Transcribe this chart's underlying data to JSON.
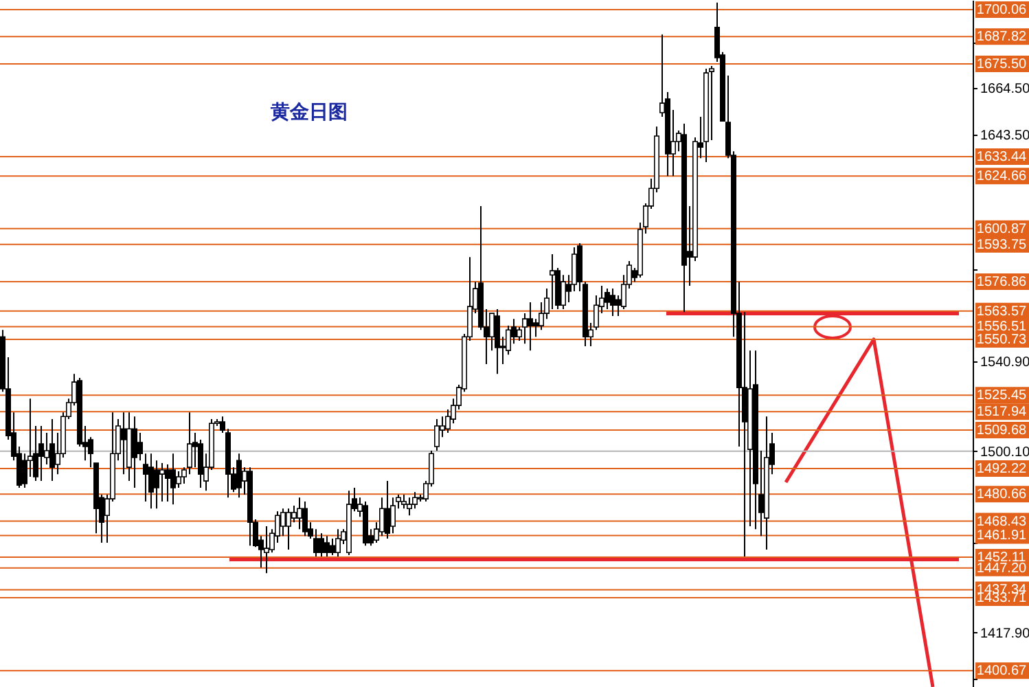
{
  "chart_data": {
    "type": "candlestick",
    "title": "黄金日图",
    "color": "#000000",
    "tick_labels": "y",
    "grid": false,
    "ylim": [
      1393.3,
      1704.4
    ],
    "yticks": [
      {
        "value": 1684.9,
        "label": null
      },
      {
        "value": 1664.5,
        "label": "1664.50"
      },
      {
        "value": 1643.5,
        "label": "1643.50"
      },
      {
        "value": 1582.3,
        "label": null
      },
      {
        "value": 1540.9,
        "label": "1540.90"
      },
      {
        "value": 1500.1,
        "label": "1500.10"
      },
      {
        "value": 1458.7,
        "label": null
      },
      {
        "value": 1417.9,
        "label": "1417.90"
      },
      {
        "value": 1396.9,
        "label": null
      }
    ],
    "ref_lines": [
      {
        "axis": "y",
        "value": 1700.06,
        "label": "1700.06",
        "color": "#e2621b"
      },
      {
        "axis": "y",
        "value": 1687.82,
        "label": "1687.82",
        "color": "#e2621b"
      },
      {
        "axis": "y",
        "value": 1675.5,
        "label": "1675.50",
        "color": "#e2621b"
      },
      {
        "axis": "y",
        "value": 1633.44,
        "label": "1633.44",
        "color": "#e2621b"
      },
      {
        "axis": "y",
        "value": 1624.66,
        "label": "1624.66",
        "color": "#e2621b"
      },
      {
        "axis": "y",
        "value": 1600.87,
        "label": "1600.87",
        "color": "#e2621b"
      },
      {
        "axis": "y",
        "value": 1593.75,
        "label": "1593.75",
        "color": "#e2621b"
      },
      {
        "axis": "y",
        "value": 1576.86,
        "label": "1576.86",
        "color": "#e2621b"
      },
      {
        "axis": "y",
        "value": 1563.57,
        "label": "1563.57",
        "color": "#e2621b"
      },
      {
        "axis": "y",
        "value": 1556.51,
        "label": "1556.51",
        "color": "#e2621b"
      },
      {
        "axis": "y",
        "value": 1550.73,
        "label": "1550.73",
        "color": "#e2621b"
      },
      {
        "axis": "y",
        "value": 1525.45,
        "label": "1525.45",
        "color": "#e2621b"
      },
      {
        "axis": "y",
        "value": 1517.94,
        "label": "1517.94",
        "color": "#e2621b"
      },
      {
        "axis": "y",
        "value": 1509.68,
        "label": "1509.68",
        "color": "#e2621b"
      },
      {
        "axis": "y",
        "value": 1500.1,
        "color": "#b4b4b4"
      },
      {
        "axis": "y",
        "value": 1492.22,
        "label": "1492.22",
        "color": "#e2621b"
      },
      {
        "axis": "y",
        "value": 1480.66,
        "label": "1480.66",
        "color": "#e2621b"
      },
      {
        "axis": "y",
        "value": 1468.43,
        "label": "1468.43",
        "color": "#e2621b"
      },
      {
        "axis": "y",
        "value": 1461.91,
        "label": "1461.91",
        "color": "#e2621b"
      },
      {
        "axis": "y",
        "value": 1452.11,
        "label": "1452.11",
        "color": "#e2621b"
      },
      {
        "axis": "y",
        "value": 1447.2,
        "label": "1447.20",
        "color": "#e2621b"
      },
      {
        "axis": "y",
        "value": 1437.34,
        "label": "1437.34",
        "color": "#e2621b"
      },
      {
        "axis": "y",
        "value": 1433.71,
        "label": "1433.71",
        "color": "#e2621b"
      },
      {
        "axis": "y",
        "value": 1400.67,
        "label": "1400.67",
        "color": "#e2621b"
      }
    ],
    "categories": [
      null,
      null,
      null,
      null,
      null,
      null,
      null,
      null,
      null,
      null,
      null,
      null,
      null,
      null,
      null,
      null,
      null,
      null,
      null,
      null,
      null,
      null,
      null,
      null,
      null,
      null,
      null,
      null,
      null,
      null,
      null,
      null,
      null,
      null,
      null,
      null,
      null,
      null,
      null,
      null,
      null,
      null,
      null,
      null,
      null,
      null,
      null,
      null,
      null,
      null,
      null,
      null,
      null,
      null,
      null,
      null,
      null,
      null,
      null,
      null,
      null,
      null,
      null,
      null,
      null,
      null,
      null,
      null,
      null,
      null,
      null,
      null,
      null,
      null,
      null,
      null,
      null,
      null,
      null,
      null,
      null,
      null,
      null,
      null,
      null,
      null,
      null,
      null,
      null,
      null,
      null,
      null,
      null,
      null,
      null,
      null,
      null,
      null,
      null,
      null,
      null,
      null,
      null,
      null,
      null,
      null,
      null,
      null,
      null,
      null,
      null,
      null,
      null,
      null,
      null,
      null,
      null,
      null,
      null,
      null,
      null,
      null,
      null,
      null,
      null,
      null,
      null,
      null,
      null,
      null,
      null,
      null,
      null,
      null,
      null,
      null,
      null,
      null,
      null,
      null,
      null,
      null,
      null,
      null,
      null,
      null,
      null,
      null,
      null,
      null,
      null,
      null,
      null,
      null,
      null,
      null,
      null,
      null,
      null,
      null,
      null,
      null,
      null,
      null,
      null,
      null,
      null,
      null,
      null,
      null,
      null,
      null,
      null,
      null,
      null,
      null,
      null
    ],
    "ohlc": [
      [
        1551.9,
        1555.0,
        1527.0,
        1528.3
      ],
      [
        1528.3,
        1542.6,
        1505.3,
        1507.1
      ],
      [
        1508.4,
        1517.7,
        1495.9,
        1497.8
      ],
      [
        1499.0,
        1502.2,
        1483.5,
        1484.7
      ],
      [
        1495.9,
        1499.0,
        1483.5,
        1485.4
      ],
      [
        1495.9,
        1523.9,
        1488.5,
        1497.8
      ],
      [
        1499.0,
        1511.5,
        1486.6,
        1488.5
      ],
      [
        1503.4,
        1511.5,
        1486.6,
        1497.8
      ],
      [
        1497.2,
        1508.4,
        1494.1,
        1500.3
      ],
      [
        1503.4,
        1514.6,
        1486.6,
        1492.8
      ],
      [
        1494.1,
        1508.4,
        1489.7,
        1499.0
      ],
      [
        1499.0,
        1517.7,
        1497.2,
        1515.8
      ],
      [
        1515.8,
        1523.9,
        1514.6,
        1522.1
      ],
      [
        1522.1,
        1535.1,
        1520.8,
        1531.4
      ],
      [
        1532.0,
        1533.3,
        1502.2,
        1503.4
      ],
      [
        1504.0,
        1511.5,
        1495.9,
        1502.2
      ],
      [
        1505.3,
        1506.5,
        1492.8,
        1499.0
      ],
      [
        1494.7,
        1494.7,
        1462.9,
        1474.1
      ],
      [
        1479.1,
        1480.4,
        1458.6,
        1467.9
      ],
      [
        1471.0,
        1480.4,
        1458.6,
        1478.5
      ],
      [
        1478.5,
        1517.7,
        1477.3,
        1499.0
      ],
      [
        1499.0,
        1514.6,
        1495.9,
        1511.5
      ],
      [
        1510.2,
        1517.7,
        1489.7,
        1505.3
      ],
      [
        1492.8,
        1517.7,
        1486.6,
        1510.2
      ],
      [
        1510.2,
        1515.8,
        1483.5,
        1497.2
      ],
      [
        1504.0,
        1508.4,
        1495.9,
        1499.0
      ],
      [
        1494.1,
        1499.0,
        1477.3,
        1489.7
      ],
      [
        1492.8,
        1499.0,
        1474.1,
        1481.6
      ],
      [
        1491.6,
        1495.9,
        1474.1,
        1483.5
      ],
      [
        1489.7,
        1494.7,
        1477.3,
        1491.6
      ],
      [
        1491.6,
        1494.1,
        1477.3,
        1487.8
      ],
      [
        1491.6,
        1499.0,
        1476.0,
        1483.5
      ],
      [
        1485.4,
        1491.0,
        1483.5,
        1488.5
      ],
      [
        1488.5,
        1492.8,
        1485.4,
        1491.6
      ],
      [
        1492.8,
        1517.7,
        1489.7,
        1503.4
      ],
      [
        1504.0,
        1508.4,
        1492.8,
        1502.2
      ],
      [
        1503.4,
        1505.3,
        1483.5,
        1489.7
      ],
      [
        1486.6,
        1499.0,
        1482.2,
        1492.8
      ],
      [
        1492.8,
        1514.6,
        1491.6,
        1512.7
      ],
      [
        1512.7,
        1514.6,
        1511.5,
        1513.4
      ],
      [
        1513.4,
        1515.8,
        1508.4,
        1509.6
      ],
      [
        1508.4,
        1510.2,
        1479.1,
        1489.7
      ],
      [
        1489.7,
        1492.8,
        1481.6,
        1482.9
      ],
      [
        1495.9,
        1499.0,
        1479.1,
        1483.5
      ],
      [
        1486.6,
        1492.8,
        1480.4,
        1491.0
      ],
      [
        1491.0,
        1492.8,
        1457.3,
        1467.9
      ],
      [
        1467.9,
        1469.2,
        1456.7,
        1457.3
      ],
      [
        1459.8,
        1461.7,
        1447.4,
        1455.5
      ],
      [
        1454.2,
        1466.1,
        1444.9,
        1456.1
      ],
      [
        1455.5,
        1464.8,
        1454.2,
        1462.9
      ],
      [
        1461.7,
        1472.9,
        1458.6,
        1471.0
      ],
      [
        1466.1,
        1474.1,
        1461.7,
        1472.3
      ],
      [
        1466.1,
        1474.1,
        1455.5,
        1472.3
      ],
      [
        1469.8,
        1475.4,
        1467.9,
        1472.3
      ],
      [
        1469.8,
        1479.1,
        1464.8,
        1474.1
      ],
      [
        1474.1,
        1477.3,
        1461.7,
        1463.6
      ],
      [
        1464.8,
        1467.9,
        1460.5,
        1461.7
      ],
      [
        1460.5,
        1464.8,
        1452.4,
        1454.2
      ],
      [
        1460.5,
        1462.9,
        1452.4,
        1454.2
      ],
      [
        1458.6,
        1461.7,
        1452.4,
        1454.2
      ],
      [
        1457.3,
        1460.5,
        1453.0,
        1454.2
      ],
      [
        1454.2,
        1464.8,
        1452.4,
        1460.5
      ],
      [
        1459.8,
        1464.8,
        1458.0,
        1463.6
      ],
      [
        1454.2,
        1482.2,
        1453.0,
        1476.0
      ],
      [
        1478.5,
        1483.5,
        1472.9,
        1474.1
      ],
      [
        1472.9,
        1479.1,
        1470.4,
        1476.0
      ],
      [
        1475.4,
        1477.3,
        1457.3,
        1458.6
      ],
      [
        1461.7,
        1464.8,
        1457.3,
        1458.6
      ],
      [
        1459.8,
        1467.9,
        1458.6,
        1464.8
      ],
      [
        1463.6,
        1479.1,
        1461.7,
        1474.1
      ],
      [
        1474.1,
        1486.6,
        1460.5,
        1462.9
      ],
      [
        1466.1,
        1479.1,
        1462.9,
        1475.4
      ],
      [
        1477.3,
        1480.4,
        1474.1,
        1479.1
      ],
      [
        1476.0,
        1480.4,
        1474.1,
        1477.3
      ],
      [
        1474.1,
        1479.1,
        1471.0,
        1476.0
      ],
      [
        1476.0,
        1481.6,
        1474.1,
        1479.1
      ],
      [
        1478.5,
        1480.4,
        1477.3,
        1479.1
      ],
      [
        1478.5,
        1486.6,
        1477.3,
        1485.4
      ],
      [
        1485.4,
        1500.3,
        1484.1,
        1499.0
      ],
      [
        1502.2,
        1514.6,
        1500.3,
        1511.5
      ],
      [
        1509.6,
        1515.8,
        1506.5,
        1511.5
      ],
      [
        1510.2,
        1519.0,
        1508.4,
        1515.8
      ],
      [
        1514.6,
        1523.9,
        1512.7,
        1520.8
      ],
      [
        1520.8,
        1530.2,
        1519.0,
        1528.9
      ],
      [
        1528.3,
        1553.2,
        1527.0,
        1551.9
      ],
      [
        1551.9,
        1588.0,
        1550.1,
        1565.6
      ],
      [
        1564.4,
        1576.8,
        1562.5,
        1573.7
      ],
      [
        1576.2,
        1611.1,
        1555.0,
        1556.3
      ],
      [
        1556.3,
        1564.4,
        1539.5,
        1551.9
      ],
      [
        1551.9,
        1562.5,
        1545.7,
        1562.5
      ],
      [
        1561.3,
        1564.4,
        1535.1,
        1547.0
      ],
      [
        1547.6,
        1551.9,
        1539.5,
        1547.0
      ],
      [
        1545.7,
        1556.9,
        1543.8,
        1555.0
      ],
      [
        1556.3,
        1560.0,
        1548.8,
        1551.9
      ],
      [
        1551.9,
        1556.3,
        1550.1,
        1555.0
      ],
      [
        1556.3,
        1562.5,
        1548.8,
        1560.0
      ],
      [
        1560.0,
        1567.5,
        1545.7,
        1556.9
      ],
      [
        1558.2,
        1560.0,
        1551.9,
        1556.9
      ],
      [
        1556.9,
        1567.5,
        1555.0,
        1562.5
      ],
      [
        1562.5,
        1573.7,
        1560.0,
        1569.4
      ],
      [
        1579.9,
        1589.3,
        1564.4,
        1581.8
      ],
      [
        1581.8,
        1583.1,
        1564.4,
        1566.2
      ],
      [
        1566.2,
        1579.9,
        1564.4,
        1576.8
      ],
      [
        1575.6,
        1579.9,
        1567.5,
        1572.5
      ],
      [
        1575.6,
        1592.4,
        1572.5,
        1589.3
      ],
      [
        1593.0,
        1594.3,
        1572.5,
        1576.8
      ],
      [
        1575.6,
        1576.8,
        1547.6,
        1551.9
      ],
      [
        1551.9,
        1558.2,
        1547.6,
        1555.0
      ],
      [
        1556.3,
        1570.6,
        1555.0,
        1566.2
      ],
      [
        1565.6,
        1575.0,
        1562.5,
        1569.4
      ],
      [
        1571.9,
        1573.7,
        1564.4,
        1567.5
      ],
      [
        1570.6,
        1573.7,
        1561.3,
        1566.2
      ],
      [
        1568.7,
        1570.6,
        1561.3,
        1566.2
      ],
      [
        1565.6,
        1579.9,
        1564.4,
        1575.6
      ],
      [
        1575.6,
        1586.2,
        1573.7,
        1584.3
      ],
      [
        1581.8,
        1583.1,
        1576.8,
        1578.7
      ],
      [
        1579.9,
        1603.6,
        1578.7,
        1600.5
      ],
      [
        1601.7,
        1612.3,
        1598.6,
        1611.1
      ],
      [
        1611.1,
        1623.5,
        1609.8,
        1619.1
      ],
      [
        1619.1,
        1647.1,
        1617.3,
        1642.8
      ],
      [
        1653.4,
        1688.8,
        1651.5,
        1657.7
      ],
      [
        1659.6,
        1662.7,
        1624.7,
        1634.7
      ],
      [
        1634.7,
        1654.6,
        1624.7,
        1640.3
      ],
      [
        1640.3,
        1645.3,
        1635.9,
        1644.0
      ],
      [
        1643.4,
        1648.4,
        1563.1,
        1584.3
      ],
      [
        1590.5,
        1611.1,
        1575.0,
        1588.0
      ],
      [
        1588.0,
        1642.2,
        1586.2,
        1640.3
      ],
      [
        1639.7,
        1651.5,
        1632.8,
        1637.8
      ],
      [
        1640.3,
        1673.3,
        1631.0,
        1671.4
      ],
      [
        1672.0,
        1674.5,
        1640.9,
        1673.3
      ],
      [
        1692.0,
        1703.2,
        1676.4,
        1678.3
      ],
      [
        1679.5,
        1680.8,
        1649.6,
        1649.6
      ],
      [
        1649.0,
        1670.2,
        1632.8,
        1634.1
      ],
      [
        1634.1,
        1635.9,
        1551.9,
        1562.5
      ],
      [
        1562.5,
        1576.8,
        1502.2,
        1528.9
      ],
      [
        1528.9,
        1563.1,
        1452.4,
        1513.4
      ],
      [
        1500.9,
        1545.7,
        1466.1,
        1528.3
      ],
      [
        1530.2,
        1545.7,
        1464.8,
        1485.4
      ],
      [
        1480.4,
        1500.3,
        1461.7,
        1472.3
      ],
      [
        1469.8,
        1515.8,
        1455.5,
        1497.2
      ],
      [
        1503.4,
        1508.4,
        1489.7,
        1494.1
      ],
      null,
      null,
      null,
      null,
      null,
      null,
      null,
      null,
      null,
      null,
      null,
      null,
      null,
      null,
      null,
      null,
      null,
      null,
      null,
      null,
      null,
      null,
      null,
      null,
      null,
      null,
      null,
      null,
      null,
      null,
      null,
      null,
      null,
      null,
      null,
      null
    ]
  }
}
